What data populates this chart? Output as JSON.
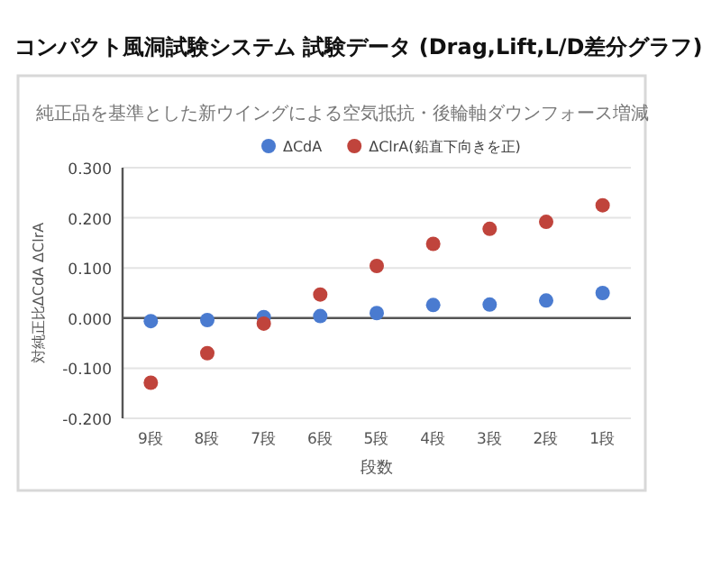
{
  "chart_data": {
    "type": "scatter",
    "title": "コンパクト風洞試験システム 試験データ (Drag,Lift,L/D差分グラフ)",
    "subtitle": "純正品を基準とした新ウイングによる空気抵抗・後輪軸ダウンフォース増減",
    "xlabel": "段数",
    "ylabel": "対純正比ΔCdA ΔClrA",
    "categories": [
      "9段",
      "8段",
      "7段",
      "6段",
      "5段",
      "4段",
      "3段",
      "2段",
      "1段"
    ],
    "series": [
      {
        "name": "ΔCdA",
        "color": "#4a7bd0",
        "values": [
          -0.006,
          -0.004,
          0.002,
          0.004,
          0.01,
          0.026,
          0.027,
          0.035,
          0.05
        ]
      },
      {
        "name": "ΔClrA(鉛直下向きを正)",
        "color": "#c0443c",
        "values": [
          -0.129,
          -0.07,
          -0.011,
          0.047,
          0.104,
          0.148,
          0.178,
          0.192,
          0.225
        ]
      }
    ],
    "ylim": [
      -0.2,
      0.3
    ],
    "yticks": [
      {
        "value": -0.2,
        "label": "-0.200"
      },
      {
        "value": -0.1,
        "label": "-0.100"
      },
      {
        "value": 0,
        "label": "0.000"
      },
      {
        "value": 0.1,
        "label": "0.100"
      },
      {
        "value": 0.2,
        "label": "0.200"
      },
      {
        "value": 0.3,
        "label": "0.300"
      }
    ],
    "grid": "y",
    "legend": "top",
    "marker": "circle"
  }
}
